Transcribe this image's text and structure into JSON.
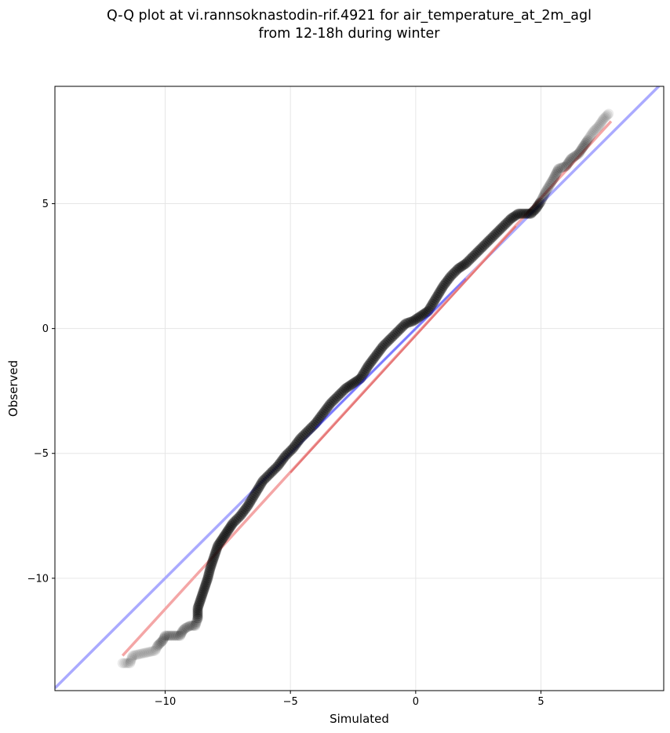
{
  "chart_data": {
    "type": "scatter",
    "title": "Q-Q plot at vi.rannsoknastodin-rif.4921 for air_temperature_at_2m_agl",
    "subtitle": "from 12-18h during winter",
    "xlabel": "Simulated",
    "ylabel": "Observed",
    "xlim": [
      -14.4,
      9.9
    ],
    "ylim": [
      -14.5,
      9.7
    ],
    "xticks": [
      -10,
      -5,
      0,
      5
    ],
    "yticks": [
      -10,
      -5,
      0,
      5
    ],
    "xtick_labels": [
      "−10",
      "−5",
      "0",
      "5"
    ],
    "ytick_labels": [
      "−10",
      "−5",
      "0",
      "5"
    ],
    "grid": true,
    "reference_line": {
      "x": [
        -14.4,
        9.9
      ],
      "y": [
        -14.4,
        9.9
      ],
      "color": "#aaaaff"
    },
    "fit_line": {
      "x": [
        -11.7,
        7.8
      ],
      "y": [
        -13.1,
        8.3
      ],
      "color": "#f4a6a6"
    },
    "quantile_points": {
      "x": [
        -11.7,
        -11.4,
        -11.3,
        -10.4,
        -10.3,
        -10.1,
        -10.0,
        -9.4,
        -9.3,
        -9.2,
        -9.0,
        -8.8,
        -8.7,
        -8.7,
        -8.6,
        -8.5,
        -8.4,
        -8.3,
        -8.2,
        -8.1,
        -8.0,
        -7.9,
        -7.7,
        -7.5,
        -7.3,
        -7.0,
        -6.7,
        -6.4,
        -6.1,
        -5.8,
        -5.5,
        -5.2,
        -4.9,
        -4.6,
        -4.3,
        -4.0,
        -3.7,
        -3.4,
        -3.1,
        -2.8,
        -2.5,
        -2.2,
        -1.9,
        -1.6,
        -1.3,
        -1.0,
        -0.7,
        -0.4,
        -0.1,
        0.2,
        0.5,
        0.8,
        1.1,
        1.4,
        1.7,
        2.0,
        2.3,
        2.6,
        2.9,
        3.2,
        3.5,
        3.8,
        4.1,
        4.4,
        4.6,
        4.8,
        5.0,
        5.2,
        5.5,
        5.7,
        6.0,
        6.2,
        6.5,
        6.7,
        6.9,
        7.1,
        7.3,
        7.5,
        7.7
      ],
      "y": [
        -13.4,
        -13.4,
        -13.1,
        -12.9,
        -12.7,
        -12.5,
        -12.3,
        -12.3,
        -12.1,
        -12.0,
        -11.9,
        -11.9,
        -11.6,
        -11.2,
        -10.9,
        -10.6,
        -10.3,
        -10.0,
        -9.6,
        -9.3,
        -9.0,
        -8.7,
        -8.4,
        -8.1,
        -7.8,
        -7.5,
        -7.1,
        -6.6,
        -6.1,
        -5.8,
        -5.5,
        -5.1,
        -4.8,
        -4.4,
        -4.1,
        -3.8,
        -3.4,
        -3.0,
        -2.7,
        -2.4,
        -2.2,
        -2.0,
        -1.5,
        -1.1,
        -0.7,
        -0.4,
        -0.1,
        0.2,
        0.3,
        0.5,
        0.7,
        1.2,
        1.7,
        2.1,
        2.4,
        2.6,
        2.9,
        3.2,
        3.5,
        3.8,
        4.1,
        4.4,
        4.6,
        4.6,
        4.6,
        4.8,
        5.1,
        5.5,
        6.0,
        6.4,
        6.5,
        6.8,
        7.0,
        7.3,
        7.6,
        7.9,
        8.1,
        8.4,
        8.6
      ]
    }
  }
}
